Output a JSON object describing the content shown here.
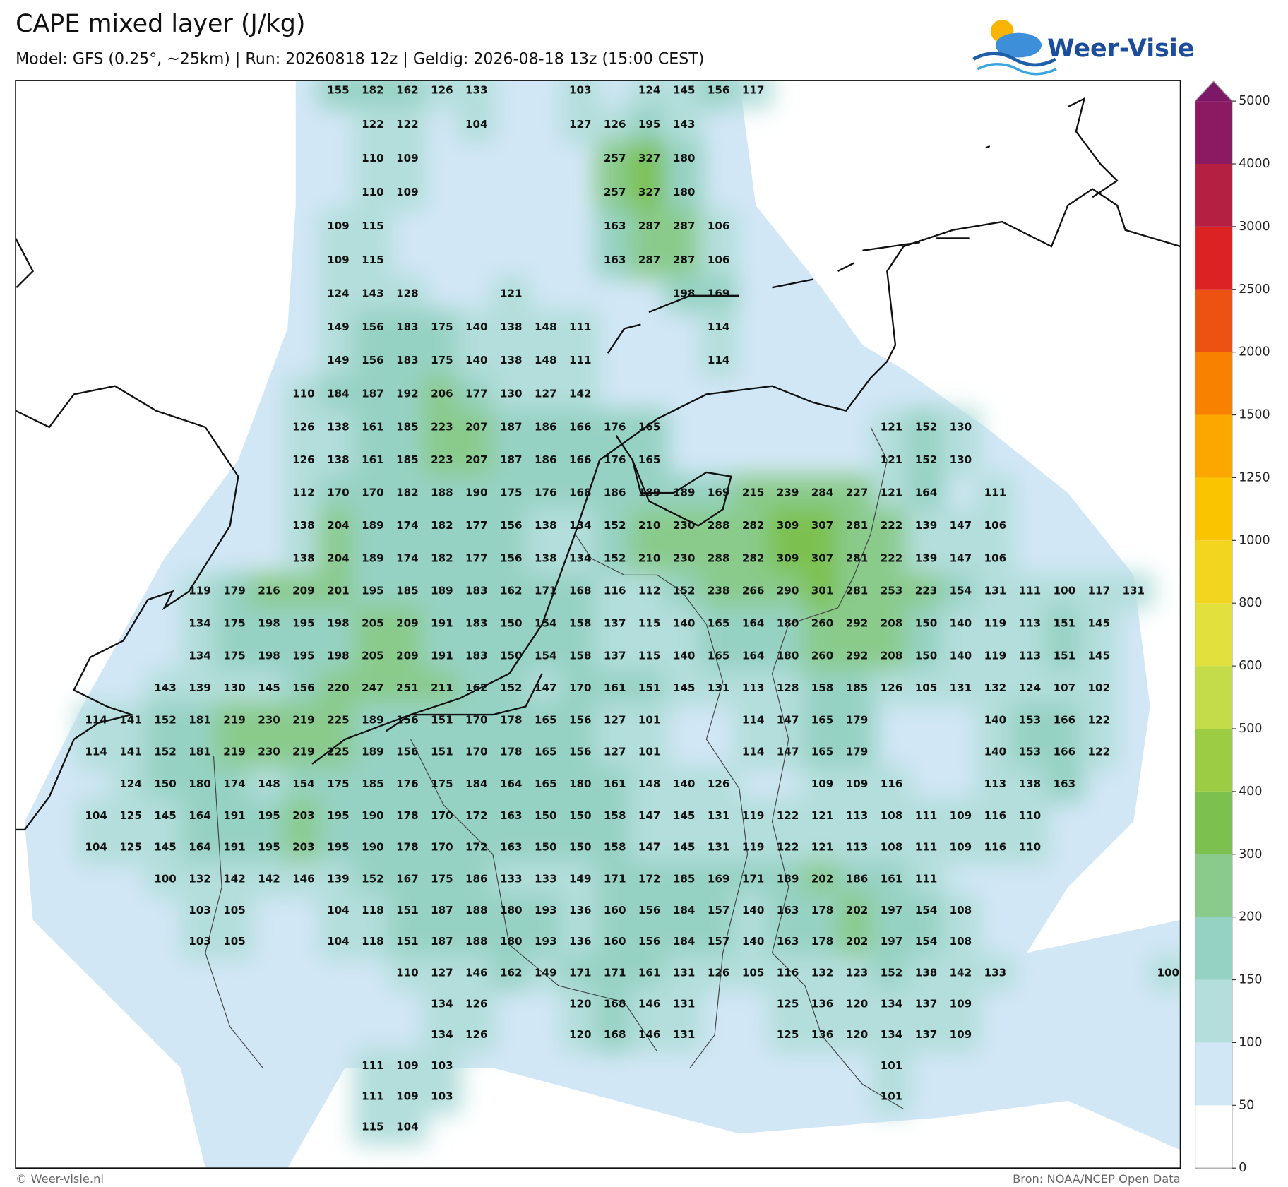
{
  "map": {
    "title": "CAPE mixed layer (J/kg)",
    "subtitle": "Model: GFS (0.25°, ~25km)  |  Run: 20260818 12z  |  Geldig: 2026-08-18 13z (15:00 CEST)",
    "logo": "Weer-Visie",
    "copyright": "© Weer-visie.nl",
    "source": "Bron: NOAA/NCEP Open Data",
    "colorbar": {
      "levels": [
        0,
        50,
        100,
        150,
        200,
        300,
        400,
        500,
        600,
        800,
        1000,
        1250,
        1500,
        2000,
        2500,
        3000,
        4000,
        5000
      ],
      "colors": [
        "#ffffff",
        "#d2e7f6",
        "#b3dedb",
        "#96d2c3",
        "#8acb8c",
        "#7cc150",
        "#9bcc44",
        "#c5dc4a",
        "#e1e03c",
        "#f3d51f",
        "#fbc400",
        "#fca600",
        "#f98100",
        "#ee5212",
        "#dc2222",
        "#b51f42",
        "#8c1a62"
      ],
      "extend_color": "#7d1868"
    },
    "values": [
      [
        null,
        null,
        null,
        null,
        null,
        null,
        null,
        155,
        182,
        162,
        126,
        133,
        null,
        null,
        103,
        null,
        124,
        145,
        156,
        117,
        null,
        null,
        null,
        null,
        null,
        null,
        null,
        null,
        null,
        null,
        null,
        null
      ],
      [
        null,
        null,
        null,
        null,
        null,
        null,
        null,
        null,
        122,
        122,
        null,
        104,
        null,
        null,
        127,
        126,
        195,
        143,
        null,
        null,
        null,
        null,
        null,
        null,
        null,
        null,
        null,
        null,
        null,
        null,
        null,
        null
      ],
      [
        null,
        null,
        null,
        null,
        null,
        null,
        null,
        null,
        110,
        109,
        null,
        null,
        null,
        null,
        null,
        257,
        327,
        180,
        null,
        null,
        null,
        null,
        null,
        null,
        null,
        null,
        null,
        null,
        null,
        null,
        null,
        null
      ],
      [
        null,
        null,
        null,
        null,
        null,
        null,
        null,
        null,
        110,
        109,
        null,
        null,
        null,
        null,
        null,
        257,
        327,
        180,
        null,
        null,
        null,
        null,
        null,
        null,
        null,
        null,
        null,
        null,
        null,
        null,
        null,
        null
      ],
      [
        null,
        null,
        null,
        null,
        null,
        null,
        null,
        109,
        115,
        null,
        null,
        null,
        null,
        null,
        null,
        163,
        287,
        287,
        106,
        null,
        null,
        null,
        null,
        null,
        null,
        null,
        null,
        null,
        null,
        null,
        null,
        null
      ],
      [
        null,
        null,
        null,
        null,
        null,
        null,
        null,
        109,
        115,
        null,
        null,
        null,
        null,
        null,
        null,
        163,
        287,
        287,
        106,
        null,
        null,
        null,
        null,
        null,
        null,
        null,
        null,
        null,
        null,
        null,
        null,
        null
      ],
      [
        null,
        null,
        null,
        null,
        null,
        null,
        null,
        124,
        143,
        128,
        null,
        null,
        121,
        null,
        null,
        null,
        null,
        198,
        169,
        null,
        null,
        null,
        null,
        null,
        null,
        null,
        null,
        null,
        null,
        null,
        null,
        null
      ],
      [
        null,
        null,
        null,
        null,
        null,
        null,
        null,
        149,
        156,
        183,
        175,
        140,
        138,
        148,
        111,
        null,
        null,
        null,
        114,
        null,
        null,
        null,
        null,
        null,
        null,
        null,
        null,
        null,
        null,
        null,
        null,
        null
      ],
      [
        null,
        null,
        null,
        null,
        null,
        null,
        null,
        149,
        156,
        183,
        175,
        140,
        138,
        148,
        111,
        null,
        null,
        null,
        114,
        null,
        null,
        null,
        null,
        null,
        null,
        null,
        null,
        null,
        null,
        null,
        null,
        null
      ],
      [
        null,
        null,
        null,
        null,
        null,
        null,
        110,
        184,
        187,
        192,
        206,
        177,
        130,
        127,
        142,
        null,
        null,
        null,
        null,
        null,
        null,
        null,
        null,
        null,
        null,
        null,
        null,
        null,
        null,
        null,
        null,
        null
      ],
      [
        null,
        null,
        null,
        null,
        null,
        null,
        126,
        138,
        161,
        185,
        223,
        207,
        187,
        186,
        166,
        176,
        165,
        null,
        null,
        null,
        null,
        null,
        null,
        121,
        152,
        130,
        null,
        null,
        null,
        null,
        null,
        null
      ],
      [
        null,
        null,
        null,
        null,
        null,
        null,
        126,
        138,
        161,
        185,
        223,
        207,
        187,
        186,
        166,
        176,
        165,
        null,
        null,
        null,
        null,
        null,
        null,
        121,
        152,
        130,
        null,
        null,
        null,
        null,
        null,
        null
      ],
      [
        null,
        null,
        null,
        null,
        null,
        null,
        112,
        170,
        170,
        182,
        188,
        190,
        175,
        176,
        168,
        186,
        189,
        189,
        169,
        215,
        239,
        284,
        227,
        121,
        164,
        null,
        111,
        null,
        null,
        null,
        null,
        null
      ],
      [
        null,
        null,
        null,
        null,
        null,
        null,
        138,
        204,
        189,
        174,
        182,
        177,
        156,
        138,
        134,
        152,
        210,
        230,
        288,
        282,
        309,
        307,
        281,
        222,
        139,
        147,
        106,
        null,
        null,
        null,
        null,
        null
      ],
      [
        null,
        null,
        null,
        null,
        null,
        null,
        138,
        204,
        189,
        174,
        182,
        177,
        156,
        138,
        134,
        152,
        210,
        230,
        288,
        282,
        309,
        307,
        281,
        222,
        139,
        147,
        106,
        null,
        null,
        null,
        null,
        null
      ],
      [
        null,
        null,
        null,
        119,
        179,
        216,
        209,
        201,
        195,
        185,
        189,
        183,
        162,
        171,
        168,
        116,
        112,
        152,
        238,
        266,
        290,
        301,
        281,
        253,
        223,
        154,
        131,
        111,
        100,
        117,
        131,
        null
      ],
      [
        null,
        null,
        null,
        134,
        175,
        198,
        195,
        198,
        205,
        209,
        191,
        183,
        150,
        154,
        158,
        137,
        115,
        140,
        165,
        164,
        180,
        260,
        292,
        208,
        150,
        140,
        119,
        113,
        151,
        145,
        null,
        null
      ],
      [
        null,
        null,
        null,
        134,
        175,
        198,
        195,
        198,
        205,
        209,
        191,
        183,
        150,
        154,
        158,
        137,
        115,
        140,
        165,
        164,
        180,
        260,
        292,
        208,
        150,
        140,
        119,
        113,
        151,
        145,
        null,
        null
      ],
      [
        null,
        null,
        143,
        139,
        130,
        145,
        156,
        220,
        247,
        251,
        211,
        162,
        152,
        147,
        170,
        161,
        151,
        145,
        131,
        113,
        128,
        158,
        185,
        126,
        105,
        131,
        132,
        124,
        107,
        102,
        null,
        null
      ],
      [
        114,
        141,
        152,
        181,
        219,
        230,
        219,
        225,
        189,
        156,
        151,
        170,
        178,
        165,
        156,
        127,
        101,
        null,
        null,
        114,
        147,
        165,
        179,
        null,
        null,
        null,
        140,
        153,
        166,
        122,
        null,
        null
      ],
      [
        114,
        141,
        152,
        181,
        219,
        230,
        219,
        225,
        189,
        156,
        151,
        170,
        178,
        165,
        156,
        127,
        101,
        null,
        null,
        114,
        147,
        165,
        179,
        null,
        null,
        null,
        140,
        153,
        166,
        122,
        null,
        null
      ],
      [
        null,
        124,
        150,
        180,
        174,
        148,
        154,
        175,
        185,
        176,
        175,
        184,
        164,
        165,
        180,
        161,
        148,
        140,
        126,
        null,
        null,
        109,
        109,
        116,
        null,
        null,
        113,
        138,
        163,
        null,
        null,
        null
      ],
      [
        104,
        125,
        145,
        164,
        191,
        195,
        203,
        195,
        190,
        178,
        170,
        172,
        163,
        150,
        150,
        158,
        147,
        145,
        131,
        119,
        122,
        121,
        113,
        108,
        111,
        109,
        116,
        110,
        null,
        null,
        null,
        null
      ],
      [
        104,
        125,
        145,
        164,
        191,
        195,
        203,
        195,
        190,
        178,
        170,
        172,
        163,
        150,
        150,
        158,
        147,
        145,
        131,
        119,
        122,
        121,
        113,
        108,
        111,
        109,
        116,
        110,
        null,
        null,
        null,
        null
      ],
      [
        null,
        null,
        100,
        132,
        142,
        142,
        146,
        139,
        152,
        167,
        175,
        186,
        133,
        133,
        149,
        171,
        172,
        185,
        169,
        171,
        189,
        202,
        186,
        161,
        111,
        null,
        null,
        null,
        null,
        null,
        null,
        null
      ],
      [
        null,
        null,
        null,
        103,
        105,
        null,
        null,
        104,
        118,
        151,
        187,
        188,
        180,
        193,
        136,
        160,
        156,
        184,
        157,
        140,
        163,
        178,
        202,
        197,
        154,
        108,
        null,
        null,
        null,
        null,
        null,
        null
      ],
      [
        null,
        null,
        null,
        103,
        105,
        null,
        null,
        104,
        118,
        151,
        187,
        188,
        180,
        193,
        136,
        160,
        156,
        184,
        157,
        140,
        163,
        178,
        202,
        197,
        154,
        108,
        null,
        null,
        null,
        null,
        null,
        null
      ],
      [
        null,
        null,
        null,
        null,
        null,
        null,
        null,
        null,
        null,
        110,
        127,
        146,
        162,
        149,
        171,
        171,
        161,
        131,
        126,
        105,
        116,
        132,
        123,
        152,
        138,
        142,
        133,
        null,
        null,
        null,
        null,
        100
      ],
      [
        null,
        null,
        null,
        null,
        null,
        null,
        null,
        null,
        null,
        null,
        134,
        126,
        null,
        null,
        120,
        168,
        146,
        131,
        null,
        null,
        125,
        136,
        120,
        134,
        137,
        109,
        null,
        null,
        null,
        null,
        null,
        null
      ],
      [
        null,
        null,
        null,
        null,
        null,
        null,
        null,
        null,
        null,
        null,
        134,
        126,
        null,
        null,
        120,
        168,
        146,
        131,
        null,
        null,
        125,
        136,
        120,
        134,
        137,
        109,
        null,
        null,
        null,
        null,
        null,
        null
      ],
      [
        null,
        null,
        null,
        null,
        null,
        null,
        null,
        null,
        111,
        109,
        103,
        null,
        null,
        null,
        null,
        null,
        null,
        null,
        null,
        null,
        null,
        null,
        null,
        101,
        null,
        null,
        null,
        null,
        null,
        null,
        null,
        null
      ],
      [
        null,
        null,
        null,
        null,
        null,
        null,
        null,
        null,
        111,
        109,
        103,
        null,
        null,
        null,
        null,
        null,
        null,
        null,
        null,
        null,
        null,
        null,
        null,
        101,
        null,
        null,
        null,
        null,
        null,
        null,
        null,
        null
      ],
      [
        null,
        null,
        null,
        null,
        null,
        null,
        null,
        null,
        115,
        104,
        null,
        null,
        null,
        null,
        null,
        null,
        null,
        null,
        null,
        null,
        null,
        null,
        null,
        null,
        null,
        null,
        null,
        null,
        null,
        null,
        null,
        null
      ]
    ]
  }
}
